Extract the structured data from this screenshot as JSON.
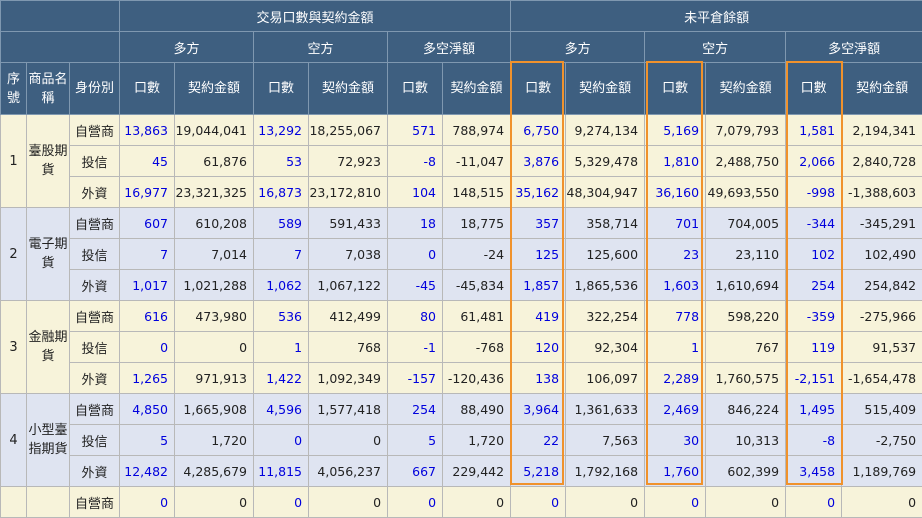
{
  "header": {
    "seq": "序號",
    "product": "商品名稱",
    "identity": "身份別",
    "group_trading": "交易口數與契約金額",
    "group_oi": "未平倉餘額",
    "long": "多方",
    "short": "空方",
    "net": "多空淨額",
    "lots": "口數",
    "amount": "契約金額"
  },
  "colors": {
    "header_bg": "#3e5f80",
    "lots_text": "#0000dd",
    "highlight": "#f0922c",
    "row_odd": "#f7f3da",
    "row_even": "#dfe4f1"
  },
  "groups": [
    {
      "seq": "1",
      "product": "臺股期貨",
      "rows": [
        {
          "ident": "自營商",
          "cells": [
            "13,863",
            "19,044,041",
            "13,292",
            "18,255,067",
            "571",
            "788,974",
            "6,750",
            "9,274,134",
            "5,169",
            "7,079,793",
            "1,581",
            "2,194,341"
          ]
        },
        {
          "ident": "投信",
          "cells": [
            "45",
            "61,876",
            "53",
            "72,923",
            "-8",
            "-11,047",
            "3,876",
            "5,329,478",
            "1,810",
            "2,488,750",
            "2,066",
            "2,840,728"
          ]
        },
        {
          "ident": "外資",
          "cells": [
            "16,977",
            "23,321,325",
            "16,873",
            "23,172,810",
            "104",
            "148,515",
            "35,162",
            "48,304,947",
            "36,160",
            "49,693,550",
            "-998",
            "-1,388,603"
          ]
        }
      ]
    },
    {
      "seq": "2",
      "product": "電子期貨",
      "rows": [
        {
          "ident": "自營商",
          "cells": [
            "607",
            "610,208",
            "589",
            "591,433",
            "18",
            "18,775",
            "357",
            "358,714",
            "701",
            "704,005",
            "-344",
            "-345,291"
          ]
        },
        {
          "ident": "投信",
          "cells": [
            "7",
            "7,014",
            "7",
            "7,038",
            "0",
            "-24",
            "125",
            "125,600",
            "23",
            "23,110",
            "102",
            "102,490"
          ]
        },
        {
          "ident": "外資",
          "cells": [
            "1,017",
            "1,021,288",
            "1,062",
            "1,067,122",
            "-45",
            "-45,834",
            "1,857",
            "1,865,536",
            "1,603",
            "1,610,694",
            "254",
            "254,842"
          ]
        }
      ]
    },
    {
      "seq": "3",
      "product": "金融期貨",
      "rows": [
        {
          "ident": "自營商",
          "cells": [
            "616",
            "473,980",
            "536",
            "412,499",
            "80",
            "61,481",
            "419",
            "322,254",
            "778",
            "598,220",
            "-359",
            "-275,966"
          ]
        },
        {
          "ident": "投信",
          "cells": [
            "0",
            "0",
            "1",
            "768",
            "-1",
            "-768",
            "120",
            "92,304",
            "1",
            "767",
            "119",
            "91,537"
          ]
        },
        {
          "ident": "外資",
          "cells": [
            "1,265",
            "971,913",
            "1,422",
            "1,092,349",
            "-157",
            "-120,436",
            "138",
            "106,097",
            "2,289",
            "1,760,575",
            "-2,151",
            "-1,654,478"
          ]
        }
      ]
    },
    {
      "seq": "4",
      "product": "小型臺指期貨",
      "rows": [
        {
          "ident": "自營商",
          "cells": [
            "4,850",
            "1,665,908",
            "4,596",
            "1,577,418",
            "254",
            "88,490",
            "3,964",
            "1,361,633",
            "2,469",
            "846,224",
            "1,495",
            "515,409"
          ]
        },
        {
          "ident": "投信",
          "cells": [
            "5",
            "1,720",
            "0",
            "0",
            "5",
            "1,720",
            "22",
            "7,563",
            "30",
            "10,313",
            "-8",
            "-2,750"
          ]
        },
        {
          "ident": "外資",
          "cells": [
            "12,482",
            "4,285,679",
            "11,815",
            "4,056,237",
            "667",
            "229,442",
            "5,218",
            "1,792,168",
            "1,760",
            "602,399",
            "3,458",
            "1,189,769"
          ]
        }
      ]
    },
    {
      "seq": "",
      "product": "",
      "rows": [
        {
          "ident": "自營商",
          "cells": [
            "0",
            "0",
            "0",
            "0",
            "0",
            "0",
            "0",
            "0",
            "0",
            "0",
            "0",
            "0"
          ]
        }
      ]
    }
  ]
}
